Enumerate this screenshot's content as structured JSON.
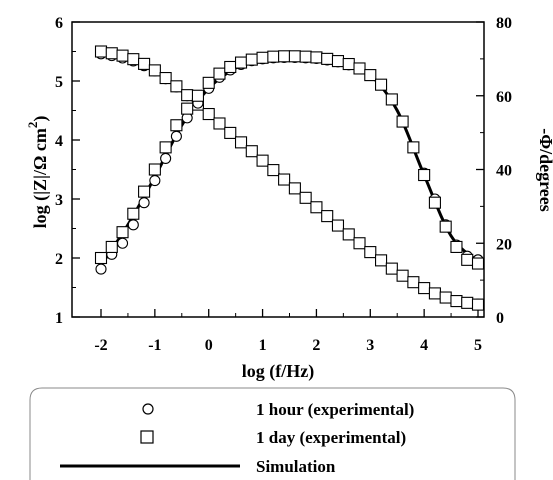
{
  "chart_data": {
    "type": "line",
    "xlabel": "log (f/Hz)",
    "ylabel_left": {
      "main": "log (|Z|/Ω cm",
      "sup": "2",
      "close": ")"
    },
    "ylabel_right": "-Φ/degrees",
    "xlim": [
      -2.5,
      5.4
    ],
    "ylim_left": [
      1,
      6
    ],
    "ylim_right": [
      0,
      80
    ],
    "xticks": [
      -2,
      -1,
      0,
      1,
      2,
      3,
      4,
      5
    ],
    "yticks_left": [
      1,
      2,
      3,
      4,
      5,
      6
    ],
    "yticks_right": [
      0,
      20,
      40,
      60,
      80
    ],
    "grid": false,
    "legend_position": "bottom",
    "legend": [
      {
        "marker": "circle",
        "label": "1 hour (experimental)"
      },
      {
        "marker": "square",
        "label": "1 day (experimental)"
      },
      {
        "marker": "line",
        "label": "Simulation"
      }
    ],
    "series": [
      {
        "name": "1 hour (experimental)",
        "quantity": "log|Z|",
        "axis": "left",
        "marker": "circle",
        "x": [
          -2.0,
          -1.8,
          -1.6,
          -1.4,
          -1.2,
          -1.0,
          -0.8,
          -0.6,
          -0.4,
          -0.2,
          0.0,
          0.2,
          0.4,
          0.6,
          0.8,
          1.0,
          1.2,
          1.4,
          1.6,
          1.8,
          2.0,
          2.2,
          2.4,
          2.6,
          2.8,
          3.0,
          3.2,
          3.4,
          3.6,
          3.8,
          4.0,
          4.2,
          4.4,
          4.6,
          4.8,
          5.0
        ],
        "y": [
          5.46,
          5.43,
          5.39,
          5.34,
          5.26,
          5.17,
          5.04,
          4.9,
          4.75,
          4.6,
          4.44,
          4.28,
          4.12,
          3.96,
          3.81,
          3.65,
          3.49,
          3.33,
          3.18,
          3.02,
          2.86,
          2.71,
          2.55,
          2.4,
          2.25,
          2.1,
          1.96,
          1.82,
          1.7,
          1.59,
          1.49,
          1.4,
          1.33,
          1.27,
          1.24,
          1.22
        ]
      },
      {
        "name": "1 day (experimental)",
        "quantity": "log|Z|",
        "axis": "left",
        "marker": "square",
        "x": [
          -2.0,
          -1.8,
          -1.6,
          -1.4,
          -1.2,
          -1.0,
          -0.8,
          -0.6,
          -0.4,
          -0.2,
          0.0,
          0.2,
          0.4,
          0.6,
          0.8,
          1.0,
          1.2,
          1.4,
          1.6,
          1.8,
          2.0,
          2.2,
          2.4,
          2.6,
          2.8,
          3.0,
          3.2,
          3.4,
          3.6,
          3.8,
          4.0,
          4.2,
          4.4,
          4.6,
          4.8,
          5.0
        ],
        "y": [
          5.5,
          5.47,
          5.43,
          5.37,
          5.29,
          5.18,
          5.05,
          4.91,
          4.76,
          4.6,
          4.44,
          4.28,
          4.12,
          3.96,
          3.81,
          3.65,
          3.49,
          3.33,
          3.18,
          3.02,
          2.86,
          2.71,
          2.55,
          2.4,
          2.25,
          2.1,
          1.96,
          1.82,
          1.7,
          1.59,
          1.49,
          1.4,
          1.33,
          1.27,
          1.24,
          1.21
        ]
      },
      {
        "name": "1 hour (experimental)",
        "quantity": "-Φ",
        "axis": "right",
        "marker": "circle",
        "x": [
          -2.0,
          -1.8,
          -1.6,
          -1.4,
          -1.2,
          -1.0,
          -0.8,
          -0.6,
          -0.4,
          -0.2,
          0.0,
          0.2,
          0.4,
          0.6,
          0.8,
          1.0,
          1.2,
          1.4,
          1.6,
          1.8,
          2.0,
          2.2,
          2.4,
          2.6,
          2.8,
          3.0,
          3.2,
          3.4,
          3.6,
          3.8,
          4.0,
          4.2,
          4.4,
          4.6,
          4.8,
          5.0
        ],
        "y": [
          13,
          17,
          20,
          25,
          31,
          37,
          43,
          49,
          54,
          58,
          62,
          65,
          67,
          68.5,
          69.5,
          70,
          70.3,
          70.4,
          70.4,
          70.3,
          70.1,
          69.7,
          69.2,
          68.4,
          67.3,
          65.6,
          63,
          59,
          53,
          46,
          39,
          32,
          25,
          19.5,
          16.5,
          15.5
        ]
      },
      {
        "name": "1 day (experimental)",
        "quantity": "-Φ",
        "axis": "right",
        "marker": "square",
        "x": [
          -2.0,
          -1.8,
          -1.6,
          -1.4,
          -1.2,
          -1.0,
          -0.8,
          -0.6,
          -0.4,
          -0.2,
          0.0,
          0.2,
          0.4,
          0.6,
          0.8,
          1.0,
          1.2,
          1.4,
          1.6,
          1.8,
          2.0,
          2.2,
          2.4,
          2.6,
          2.8,
          3.0,
          3.2,
          3.4,
          3.6,
          3.8,
          4.0,
          4.2,
          4.4,
          4.6,
          4.8,
          5.0
        ],
        "y": [
          16,
          19,
          23,
          28,
          34,
          40,
          46,
          52,
          56.5,
          60,
          63.5,
          66,
          67.8,
          69,
          69.8,
          70.3,
          70.6,
          70.7,
          70.7,
          70.6,
          70.4,
          70,
          69.4,
          68.6,
          67.4,
          65.6,
          63,
          59,
          53,
          46,
          38.5,
          31,
          24.5,
          19,
          15.5,
          14.5
        ]
      },
      {
        "name": "Simulation",
        "quantity": "log|Z|",
        "axis": "left",
        "marker": "line",
        "x": [
          -2.0,
          -1.5,
          -1.0,
          -0.5,
          0.0,
          0.5,
          1.0,
          1.5,
          2.0,
          2.5,
          3.0,
          3.5,
          4.0,
          4.5,
          5.0
        ],
        "y": [
          5.48,
          5.41,
          5.18,
          4.83,
          4.44,
          4.04,
          3.65,
          3.26,
          2.86,
          2.48,
          2.1,
          1.76,
          1.49,
          1.3,
          1.22
        ]
      },
      {
        "name": "Simulation",
        "quantity": "-Φ",
        "axis": "right",
        "marker": "line",
        "x": [
          -2.0,
          -1.5,
          -1.0,
          -0.5,
          0.0,
          0.5,
          1.0,
          1.5,
          2.0,
          2.5,
          3.0,
          3.5,
          4.0,
          4.5,
          5.0
        ],
        "y": [
          14,
          25,
          38,
          52,
          62,
          67.5,
          70,
          70.4,
          70.2,
          68.9,
          65.6,
          56,
          38.5,
          22,
          15
        ]
      }
    ]
  }
}
